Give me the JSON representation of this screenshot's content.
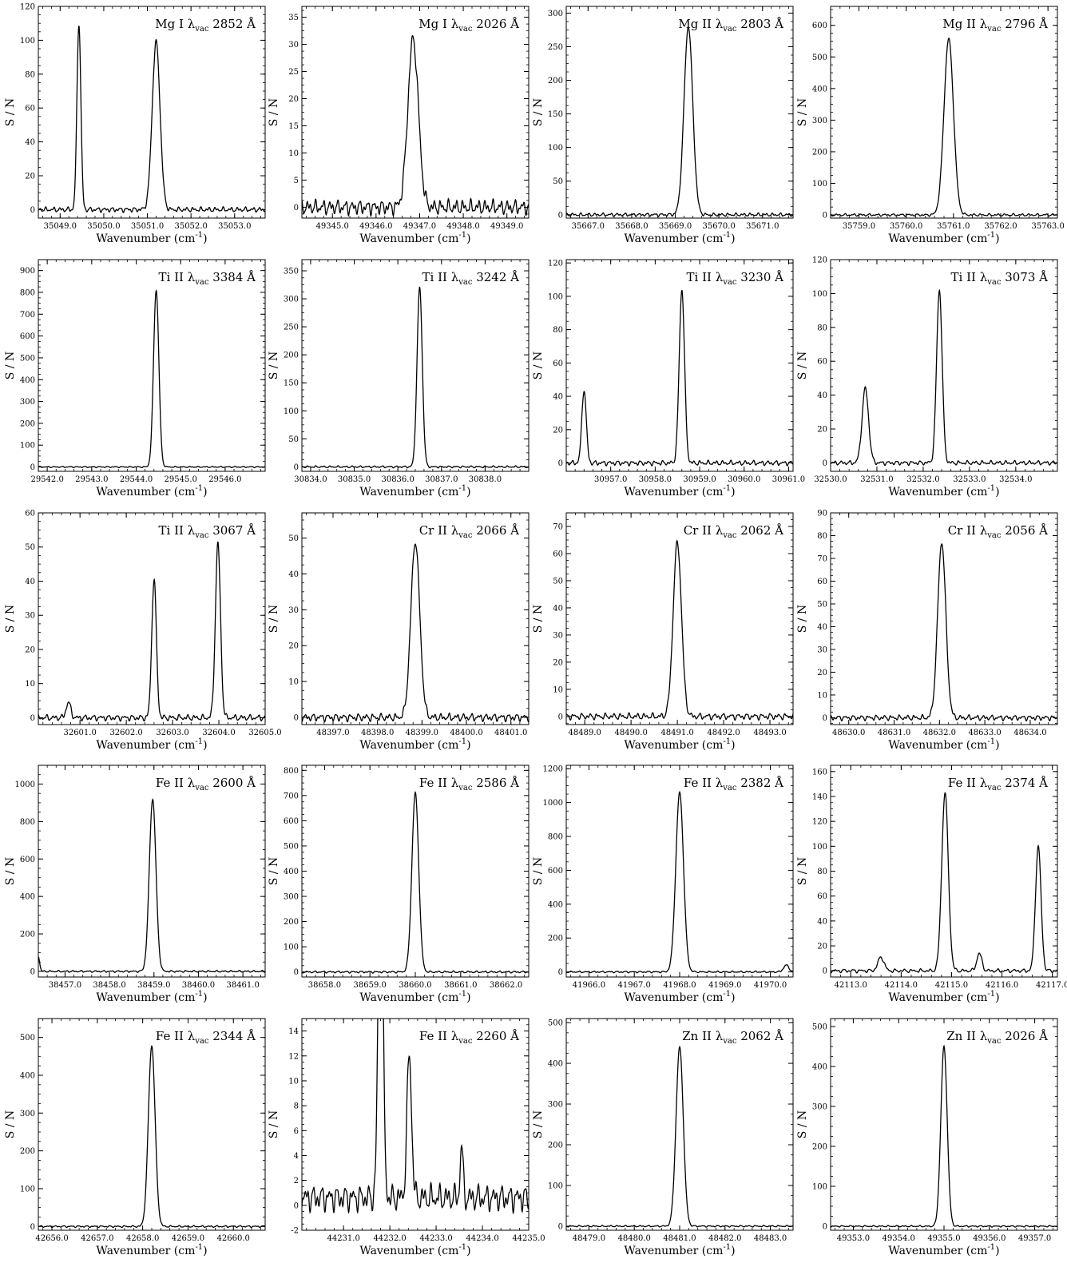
{
  "figure": {
    "ylabel": "S / N",
    "xlabel": "Wavenumber (cm",
    "xlabel_unit_sup": "-1",
    "xlabel_close": ")"
  },
  "colors": {
    "line": "#000000",
    "axes": "#000000",
    "background": "#ffffff"
  },
  "chart_data": [
    {
      "type": "line",
      "ion": "Mg I",
      "lambda": "2852",
      "unit": "Å",
      "xlim": [
        35048.5,
        35053.7
      ],
      "ylim": [
        -5,
        120
      ],
      "xticks": [
        35049.0,
        35050.0,
        35051.0,
        35052.0,
        35053.0
      ],
      "yticks": [
        0,
        20,
        40,
        60,
        80,
        100,
        120
      ],
      "continuum": 0,
      "noise": 1.5,
      "peaks": [
        {
          "x": 35049.43,
          "amp": 110,
          "w": 0.045
        },
        {
          "x": 35051.2,
          "amp": 99,
          "w": 0.09
        }
      ]
    },
    {
      "type": "line",
      "ion": "Mg I",
      "lambda": "2026",
      "unit": "Å",
      "xlim": [
        49344.3,
        49349.5
      ],
      "ylim": [
        -2,
        37
      ],
      "xticks": [
        49345.0,
        49346.0,
        49347.0,
        49348.0,
        49349.0
      ],
      "yticks": [
        0,
        5,
        10,
        15,
        20,
        25,
        30,
        35
      ],
      "continuum": 0,
      "noise": 1.4,
      "peaks": [
        {
          "x": 49346.85,
          "amp": 31,
          "w": 0.12
        }
      ]
    },
    {
      "type": "line",
      "ion": "Mg II",
      "lambda": "2803",
      "unit": "Å",
      "xlim": [
        35666.5,
        35671.7
      ],
      "ylim": [
        -5,
        310
      ],
      "xticks": [
        35667.0,
        35668.0,
        35669.0,
        35670.0,
        35671.0
      ],
      "yticks": [
        0,
        50,
        100,
        150,
        200,
        250,
        300
      ],
      "continuum": 0,
      "noise": 2.5,
      "peaks": [
        {
          "x": 35669.3,
          "amp": 280,
          "w": 0.1
        }
      ]
    },
    {
      "type": "line",
      "ion": "Mg II",
      "lambda": "2796",
      "unit": "Å",
      "xlim": [
        35758.4,
        35763.2
      ],
      "ylim": [
        -10,
        660
      ],
      "xticks": [
        35759.0,
        35760.0,
        35761.0,
        35762.0,
        35763.0
      ],
      "yticks": [
        0,
        100,
        200,
        300,
        400,
        500,
        600
      ],
      "continuum": 0,
      "noise": 4,
      "peaks": [
        {
          "x": 35760.9,
          "amp": 558,
          "w": 0.1
        }
      ]
    },
    {
      "type": "line",
      "ion": "Ti II",
      "lambda": "3384",
      "unit": "Å",
      "xlim": [
        29541.8,
        29546.9
      ],
      "ylim": [
        -20,
        950
      ],
      "xticks": [
        29542.0,
        29543.0,
        29544.0,
        29545.0,
        29546.0
      ],
      "yticks": [
        0,
        100,
        200,
        300,
        400,
        500,
        600,
        700,
        800,
        900
      ],
      "continuum": 0,
      "noise": 3,
      "peaks": [
        {
          "x": 29544.45,
          "amp": 810,
          "w": 0.06
        }
      ]
    },
    {
      "type": "line",
      "ion": "Ti II",
      "lambda": "3242",
      "unit": "Å",
      "xlim": [
        30833.8,
        30839.0
      ],
      "ylim": [
        -8,
        370
      ],
      "xticks": [
        30834.0,
        30835.0,
        30836.0,
        30837.0,
        30838.0
      ],
      "yticks": [
        0,
        50,
        100,
        150,
        200,
        250,
        300,
        350
      ],
      "continuum": 0,
      "noise": 1.8,
      "peaks": [
        {
          "x": 30836.5,
          "amp": 320,
          "w": 0.06
        }
      ]
    },
    {
      "type": "line",
      "ion": "Ti II",
      "lambda": "3230",
      "unit": "Å",
      "xlim": [
        30956.0,
        30961.1
      ],
      "ylim": [
        -5,
        122
      ],
      "xticks": [
        30957.0,
        30958.0,
        30959.0,
        30960.0,
        30961.0
      ],
      "yticks": [
        0,
        20,
        40,
        60,
        80,
        100,
        120
      ],
      "continuum": 0,
      "noise": 1.5,
      "peaks": [
        {
          "x": 30956.4,
          "amp": 44,
          "w": 0.05
        },
        {
          "x": 30958.6,
          "amp": 104,
          "w": 0.06
        }
      ]
    },
    {
      "type": "line",
      "ion": "Ti II",
      "lambda": "3073",
      "unit": "Å",
      "xlim": [
        32530.0,
        32534.9
      ],
      "ylim": [
        -5,
        120
      ],
      "xticks": [
        32530.0,
        32531.0,
        32532.0,
        32533.0,
        32534.0
      ],
      "yticks": [
        0,
        20,
        40,
        60,
        80,
        100,
        120
      ],
      "continuum": 0,
      "noise": 1.3,
      "peaks": [
        {
          "x": 32530.75,
          "amp": 44,
          "w": 0.07
        },
        {
          "x": 32532.35,
          "amp": 102,
          "w": 0.06
        }
      ]
    },
    {
      "type": "line",
      "ion": "Ti II",
      "lambda": "3067",
      "unit": "Å",
      "xlim": [
        32600.1,
        32605.0
      ],
      "ylim": [
        -2,
        60
      ],
      "xticks": [
        32601.0,
        32602.0,
        32603.0,
        32604.0,
        32605.0
      ],
      "yticks": [
        0,
        10,
        20,
        30,
        40,
        50,
        60
      ],
      "continuum": 0,
      "noise": 0.9,
      "peaks": [
        {
          "x": 32600.75,
          "amp": 4.5,
          "w": 0.05
        },
        {
          "x": 32602.6,
          "amp": 40.5,
          "w": 0.05
        },
        {
          "x": 32603.98,
          "amp": 51,
          "w": 0.055
        }
      ]
    },
    {
      "type": "line",
      "ion": "Cr II",
      "lambda": "2066",
      "unit": "Å",
      "xlim": [
        48396.3,
        48401.4
      ],
      "ylim": [
        -2,
        57
      ],
      "xticks": [
        48397.0,
        48398.0,
        48399.0,
        48400.0,
        48401.0
      ],
      "yticks": [
        0,
        10,
        20,
        30,
        40,
        50
      ],
      "continuum": 0,
      "noise": 1.1,
      "peaks": [
        {
          "x": 48398.85,
          "amp": 49,
          "w": 0.1
        }
      ]
    },
    {
      "type": "line",
      "ion": "Cr II",
      "lambda": "2062",
      "unit": "Å",
      "xlim": [
        48488.6,
        48493.5
      ],
      "ylim": [
        -3,
        75
      ],
      "xticks": [
        48489.0,
        48490.0,
        48491.0,
        48492.0,
        48493.0
      ],
      "yticks": [
        0,
        10,
        20,
        30,
        40,
        50,
        60,
        70
      ],
      "continuum": 0,
      "noise": 1.2,
      "peaks": [
        {
          "x": 48491.0,
          "amp": 64,
          "w": 0.09
        }
      ]
    },
    {
      "type": "line",
      "ion": "Cr II",
      "lambda": "2056",
      "unit": "Å",
      "xlim": [
        48629.6,
        48634.6
      ],
      "ylim": [
        -3,
        90
      ],
      "xticks": [
        48630.0,
        48631.0,
        48632.0,
        48633.0,
        48634.0
      ],
      "yticks": [
        0,
        10,
        20,
        30,
        40,
        50,
        60,
        70,
        80,
        90
      ],
      "continuum": 0,
      "noise": 1.2,
      "peaks": [
        {
          "x": 48632.05,
          "amp": 77,
          "w": 0.09
        }
      ]
    },
    {
      "type": "line",
      "ion": "Fe II",
      "lambda": "2600",
      "unit": "Å",
      "xlim": [
        38456.4,
        38461.5
      ],
      "ylim": [
        -30,
        1100
      ],
      "xticks": [
        38457.0,
        38458.0,
        38459.0,
        38460.0,
        38461.0
      ],
      "yticks": [
        0,
        200,
        400,
        600,
        800,
        1000
      ],
      "continuum": 0,
      "noise": 5,
      "peaks": [
        {
          "x": 38456.4,
          "amp": 80,
          "w": 0.03
        },
        {
          "x": 38458.97,
          "amp": 920,
          "w": 0.075
        }
      ]
    },
    {
      "type": "line",
      "ion": "Fe II",
      "lambda": "2586",
      "unit": "Å",
      "xlim": [
        38657.5,
        38662.5
      ],
      "ylim": [
        -20,
        820
      ],
      "xticks": [
        38658.0,
        38659.0,
        38660.0,
        38661.0,
        38662.0
      ],
      "yticks": [
        0,
        100,
        200,
        300,
        400,
        500,
        600,
        700,
        800
      ],
      "continuum": 0,
      "noise": 4,
      "peaks": [
        {
          "x": 38660.0,
          "amp": 710,
          "w": 0.075
        }
      ]
    },
    {
      "type": "line",
      "ion": "Fe II",
      "lambda": "2382",
      "unit": "Å",
      "xlim": [
        41965.5,
        41970.5
      ],
      "ylim": [
        -30,
        1220
      ],
      "xticks": [
        41966.0,
        41967.0,
        41968.0,
        41969.0,
        41970.0
      ],
      "yticks": [
        0,
        200,
        400,
        600,
        800,
        1000,
        1200
      ],
      "continuum": 0,
      "noise": 5,
      "peaks": [
        {
          "x": 41968.0,
          "amp": 1060,
          "w": 0.085
        },
        {
          "x": 41970.35,
          "amp": 40,
          "w": 0.06
        }
      ]
    },
    {
      "type": "line",
      "ion": "Fe II",
      "lambda": "2374",
      "unit": "Å",
      "xlim": [
        42112.6,
        42117.1
      ],
      "ylim": [
        -5,
        165
      ],
      "xticks": [
        42113.0,
        42114.0,
        42115.0,
        42116.0,
        42117.0
      ],
      "yticks": [
        0,
        20,
        40,
        60,
        80,
        100,
        120,
        140,
        160
      ],
      "continuum": 0,
      "noise": 1.5,
      "peaks": [
        {
          "x": 42113.6,
          "amp": 11,
          "w": 0.06
        },
        {
          "x": 42114.87,
          "amp": 143,
          "w": 0.065
        },
        {
          "x": 42115.55,
          "amp": 14,
          "w": 0.05
        },
        {
          "x": 42116.72,
          "amp": 100,
          "w": 0.055
        }
      ]
    },
    {
      "type": "line",
      "ion": "Fe II",
      "lambda": "2344",
      "unit": "Å",
      "xlim": [
        42655.7,
        42660.7
      ],
      "ylim": [
        -10,
        550
      ],
      "xticks": [
        42656.0,
        42657.0,
        42658.0,
        42659.0,
        42660.0
      ],
      "yticks": [
        0,
        100,
        200,
        300,
        400,
        500
      ],
      "continuum": 0,
      "noise": 2.5,
      "peaks": [
        {
          "x": 42658.2,
          "amp": 478,
          "w": 0.075
        }
      ]
    },
    {
      "type": "line",
      "ion": "Fe II",
      "lambda": "2260",
      "unit": "Å",
      "xlim": [
        44230.1,
        44235.0
      ],
      "ylim": [
        -2,
        15
      ],
      "xticks": [
        44231.0,
        44232.0,
        44233.0,
        44234.0,
        44235.0
      ],
      "yticks": [
        -2,
        0,
        2,
        4,
        6,
        8,
        10,
        12,
        14
      ],
      "continuum": 0.6,
      "noise": 1.1,
      "peaks": [
        {
          "x": 44231.8,
          "amp": 30,
          "w": 0.05
        },
        {
          "x": 44232.42,
          "amp": 11.5,
          "w": 0.05
        },
        {
          "x": 44233.55,
          "amp": 4.2,
          "w": 0.03
        }
      ]
    },
    {
      "type": "line",
      "ion": "Zn II",
      "lambda": "2062",
      "unit": "Å",
      "xlim": [
        48478.5,
        48483.5
      ],
      "ylim": [
        -10,
        510
      ],
      "xticks": [
        48479.0,
        48480.0,
        48481.0,
        48482.0,
        48483.0
      ],
      "yticks": [
        0,
        100,
        200,
        300,
        400,
        500
      ],
      "continuum": 0,
      "noise": 2,
      "peaks": [
        {
          "x": 48481.0,
          "amp": 440,
          "w": 0.08
        }
      ]
    },
    {
      "type": "line",
      "ion": "Zn II",
      "lambda": "2026",
      "unit": "Å",
      "xlim": [
        49352.5,
        49357.5
      ],
      "ylim": [
        -10,
        520
      ],
      "xticks": [
        49353.0,
        49354.0,
        49355.0,
        49356.0,
        49357.0
      ],
      "yticks": [
        0,
        100,
        200,
        300,
        400,
        500
      ],
      "continuum": 0,
      "noise": 2,
      "peaks": [
        {
          "x": 49355.0,
          "amp": 450,
          "w": 0.07
        }
      ]
    }
  ]
}
